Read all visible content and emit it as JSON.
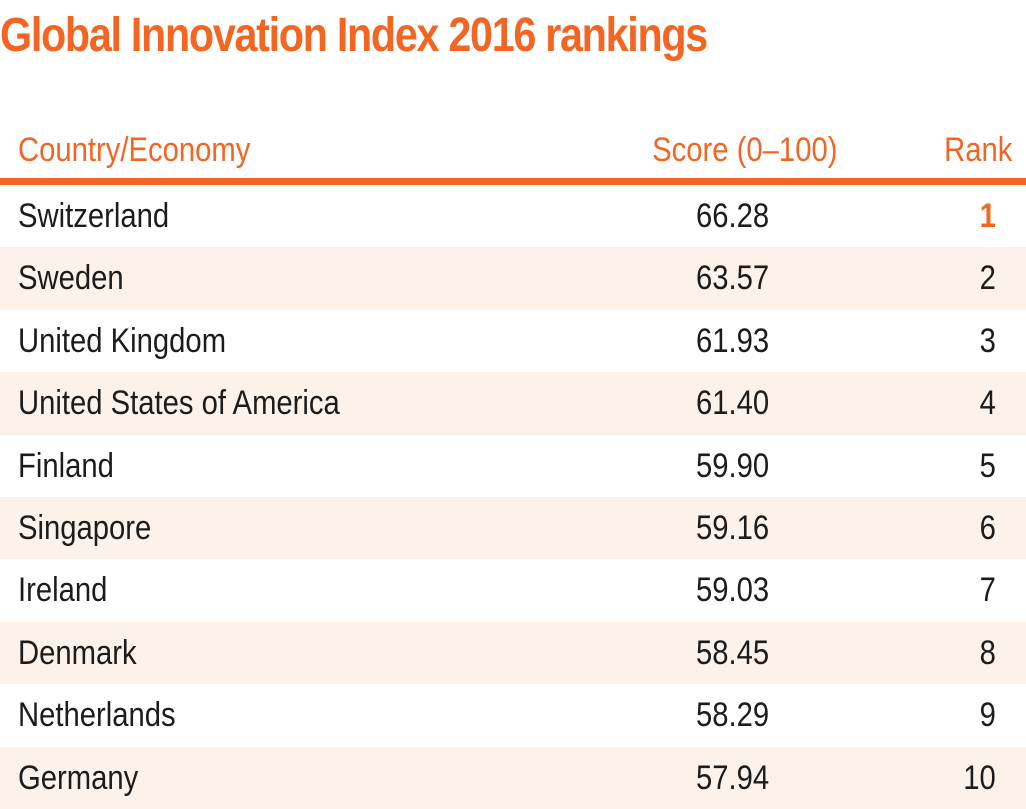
{
  "title": "Global Innovation Index 2016 rankings",
  "columns": {
    "country": "Country/Economy",
    "score": "Score (0–100)",
    "rank": "Rank"
  },
  "accent_color": "#f26522",
  "rows": [
    {
      "country": "Switzerland",
      "score": "66.28",
      "rank": "1"
    },
    {
      "country": "Sweden",
      "score": "63.57",
      "rank": "2"
    },
    {
      "country": "United Kingdom",
      "score": "61.93",
      "rank": "3"
    },
    {
      "country": "United States of America",
      "score": "61.40",
      "rank": "4"
    },
    {
      "country": "Finland",
      "score": "59.90",
      "rank": "5"
    },
    {
      "country": "Singapore",
      "score": "59.16",
      "rank": "6"
    },
    {
      "country": "Ireland",
      "score": "59.03",
      "rank": "7"
    },
    {
      "country": "Denmark",
      "score": "58.45",
      "rank": "8"
    },
    {
      "country": "Netherlands",
      "score": "58.29",
      "rank": "9"
    },
    {
      "country": "Germany",
      "score": "57.94",
      "rank": "10"
    }
  ]
}
